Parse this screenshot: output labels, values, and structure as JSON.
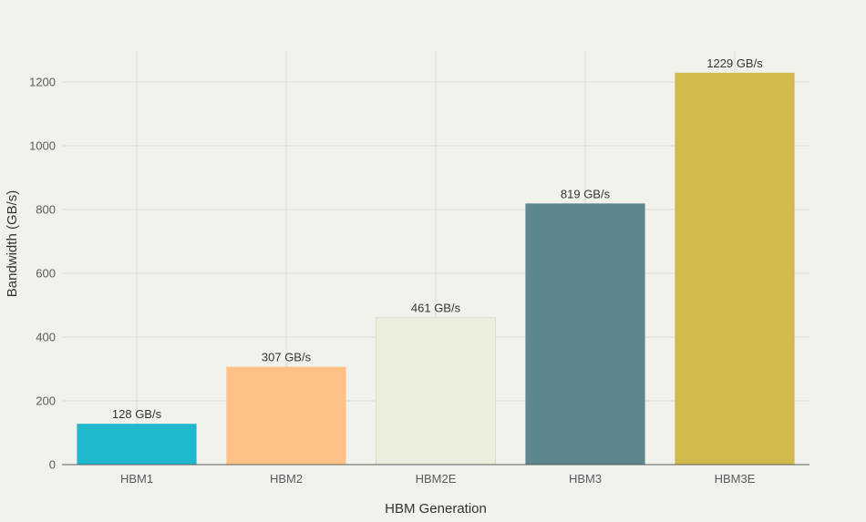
{
  "chart_data": {
    "type": "bar",
    "title": "",
    "xlabel": "HBM Generation",
    "ylabel": "Bandwidth (GB/s)",
    "categories": [
      "HBM1",
      "HBM2",
      "HBM2E",
      "HBM3",
      "HBM3E"
    ],
    "values": [
      128,
      307,
      461,
      819,
      1229
    ],
    "data_labels": [
      "128 GB/s",
      "307 GB/s",
      "461 GB/s",
      "819 GB/s",
      "1229 GB/s"
    ],
    "colors": [
      "#1fb8cd",
      "#ffc185",
      "#eceedd",
      "#5d878f",
      "#d2ba4c"
    ],
    "ylim": [
      0,
      1300
    ],
    "yticks": [
      0,
      200,
      400,
      600,
      800,
      1000,
      1200
    ],
    "grid": true,
    "legend": "none"
  }
}
